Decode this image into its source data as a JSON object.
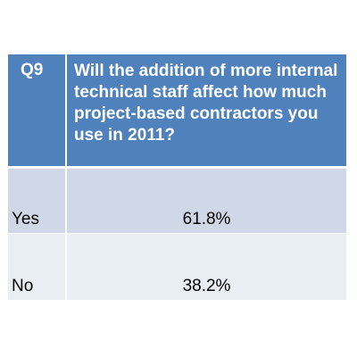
{
  "question": {
    "number": "Q9",
    "text": "Will the addition of more internal technical staff affect how much project-based contractors you use in 2011?"
  },
  "answers": [
    {
      "label": "Yes",
      "value": "61.8%"
    },
    {
      "label": "No",
      "value": "38.2%"
    }
  ],
  "colors": {
    "header_bg": "#4f81bd",
    "row1_bg": "#d0d8e8",
    "row2_bg": "#e9edf4"
  }
}
